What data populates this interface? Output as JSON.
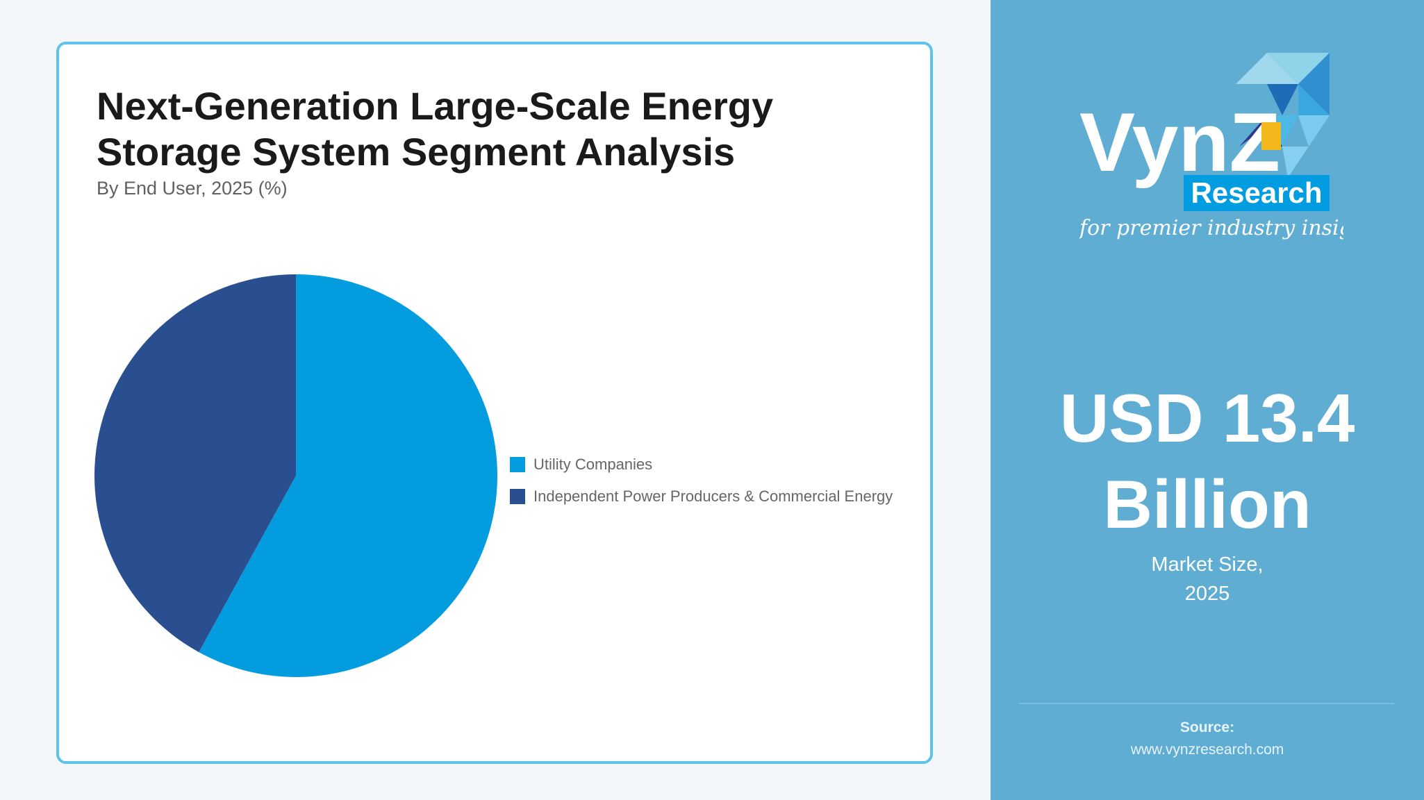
{
  "card": {
    "title": "Next-Generation Large-Scale Energy Storage System Segment Analysis",
    "subtitle": "By End User, 2025 (%)"
  },
  "legend": [
    {
      "label": "Utility Companies",
      "color": "#039ddf"
    },
    {
      "label": "Independent Power Producers & Commercial Energy",
      "color": "#2a4f90"
    }
  ],
  "panel": {
    "logo": {
      "brand": "VynZ",
      "sub": "Research",
      "tagline": "for premier industry insights"
    },
    "value_line1": "USD 13.4",
    "value_line2": "Billion",
    "caption_line1": "Market Size,",
    "caption_line2": "2025",
    "source_label": "Source:",
    "source_url": "www.vynzresearch.com"
  },
  "chart_data": {
    "type": "pie",
    "title": "Next-Generation Large-Scale Energy Storage System Segment Analysis",
    "subtitle": "By End User, 2025 (%)",
    "categories": [
      "Utility Companies",
      "Independent Power Producers & Commercial Energy"
    ],
    "values": [
      58,
      42
    ],
    "colors": [
      "#039ddf",
      "#2a4f90"
    ],
    "start_angle": 0,
    "direction": "clockwise",
    "legend_position": "right"
  }
}
